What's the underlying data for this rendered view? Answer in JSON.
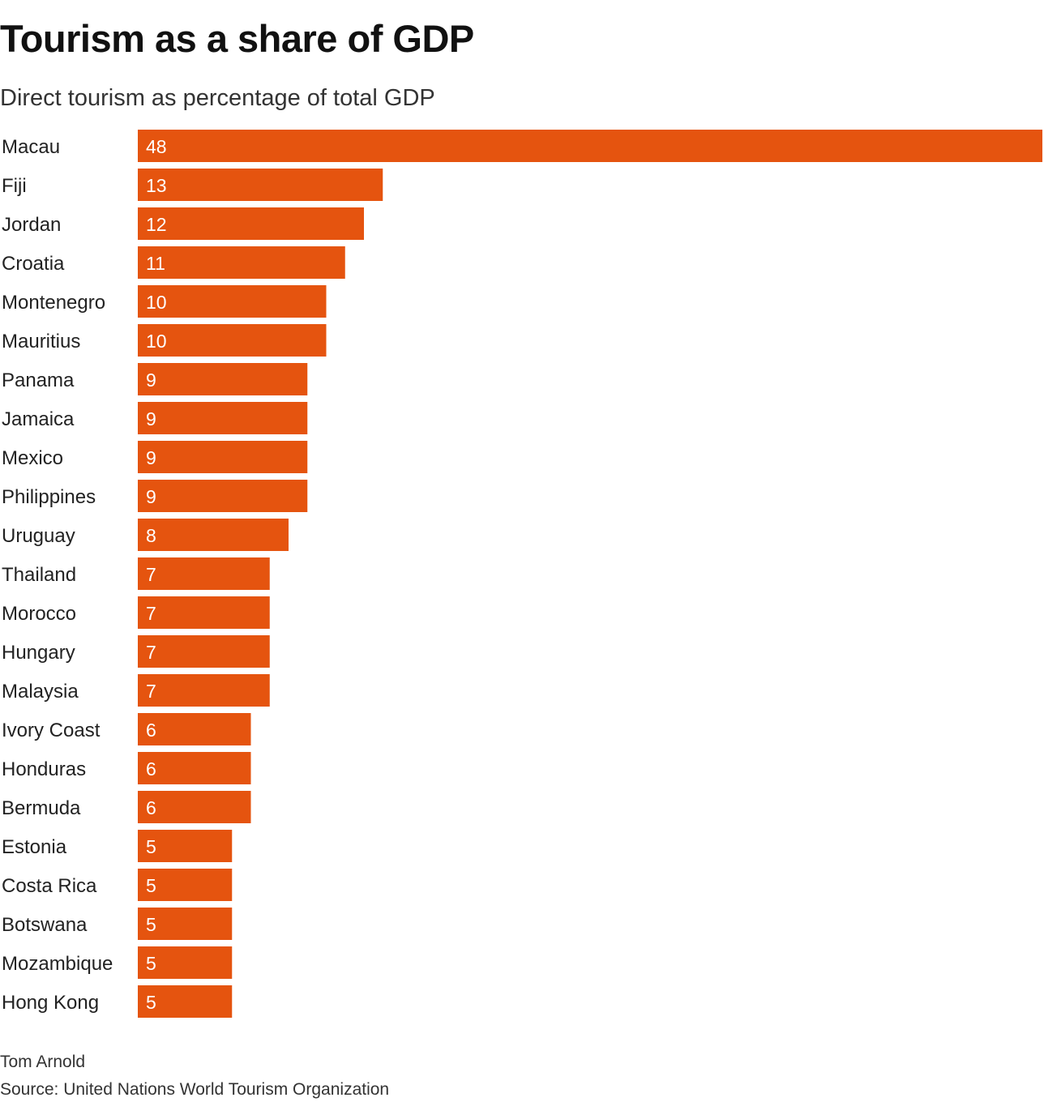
{
  "colors": {
    "bar": "#e5540f",
    "value_text": "#ffffff"
  },
  "credit": "Tom Arnold",
  "source": "Source: United Nations World Tourism Organization",
  "chart_data": {
    "type": "bar",
    "orientation": "horizontal",
    "title": "Tourism as a share of GDP",
    "subtitle": "Direct tourism as percentage of total GDP",
    "xlabel": "",
    "ylabel": "",
    "grid": false,
    "legend": "none",
    "xlim": [
      0,
      48
    ],
    "categories": [
      "Macau",
      "Fiji",
      "Jordan",
      "Croatia",
      "Montenegro",
      "Mauritius",
      "Panama",
      "Jamaica",
      "Mexico",
      "Philippines",
      "Uruguay",
      "Thailand",
      "Morocco",
      "Hungary",
      "Malaysia",
      "Ivory Coast",
      "Honduras",
      "Bermuda",
      "Estonia",
      "Costa Rica",
      "Botswana",
      "Mozambique",
      "Hong Kong"
    ],
    "values": [
      48,
      13,
      12,
      11,
      10,
      10,
      9,
      9,
      9,
      9,
      8,
      7,
      7,
      7,
      7,
      6,
      6,
      6,
      5,
      5,
      5,
      5,
      5
    ]
  }
}
